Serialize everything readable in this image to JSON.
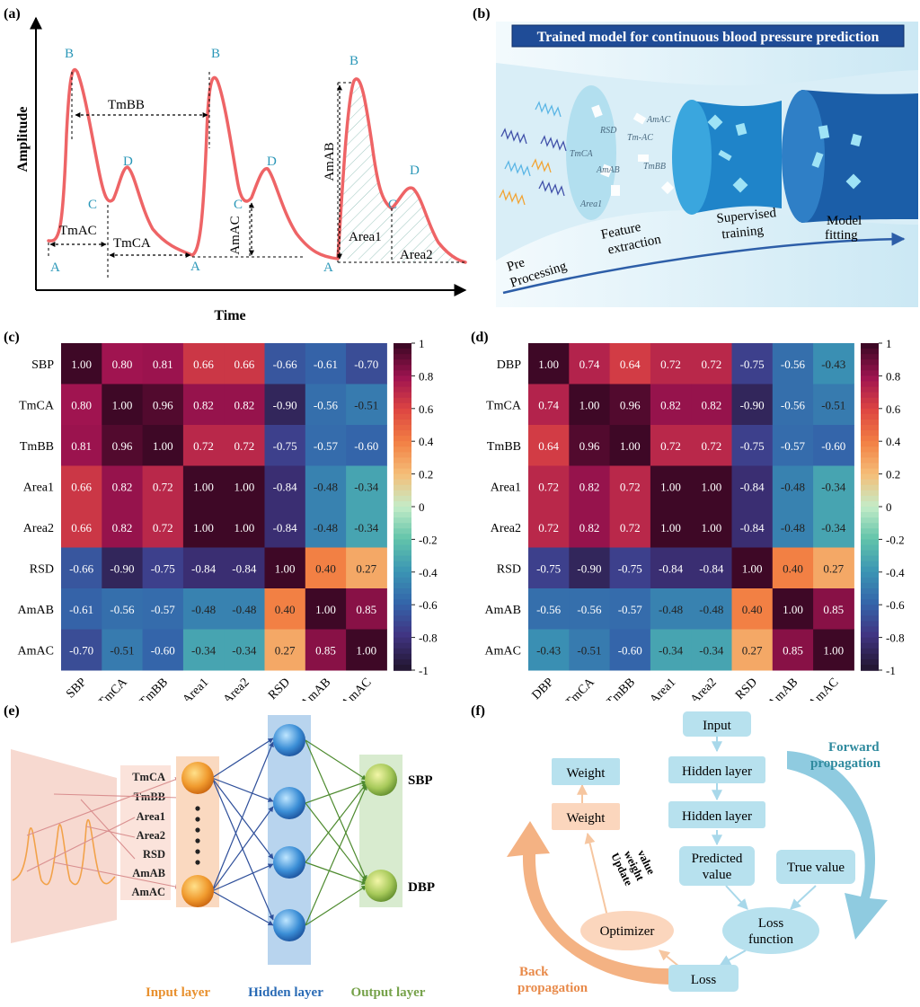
{
  "panels": {
    "a": {
      "label": "(a)",
      "ylabel": "Amplitude",
      "xlabel": "Time",
      "points": {
        "A": "A",
        "B": "B",
        "C": "C",
        "D": "D"
      },
      "measures": {
        "tmbb": "TmBB",
        "tmac": "TmAC",
        "tmca": "TmCA",
        "amac": "AmAC",
        "amab": "AmAB",
        "area1": "Area1",
        "area2": "Area2"
      }
    },
    "b": {
      "label": "(b)",
      "title": "Trained model for continuous blood pressure prediction",
      "features": [
        "RSD",
        "AmAC",
        "Tm-AC",
        "TmCA",
        "TmBB",
        "AmAB",
        "Area1"
      ],
      "steps": [
        "Pre Processing",
        "Feature extraction",
        "Supervised training",
        "Model fitting"
      ]
    },
    "e": {
      "label": "(e)",
      "inputs": [
        "TmCA",
        "TmBB",
        "Area1",
        "Area2",
        "RSD",
        "AmAB",
        "AmAC"
      ],
      "outputs": [
        "SBP",
        "DBP"
      ],
      "layers": {
        "input": "Input layer",
        "hidden": "Hidden layer",
        "output": "Output layer"
      }
    },
    "f": {
      "label": "(f)",
      "nodes": {
        "input": "Input",
        "hidden1": "Hidden layer",
        "hidden2": "Hidden layer",
        "predicted": "Predicted value",
        "true_value": "True value",
        "loss_function": "Loss function",
        "loss": "Loss",
        "optimizer": "Optimizer",
        "weight_top": "Weight",
        "weight_bottom": "Weight"
      },
      "update": "Update weight value",
      "forward": "Forward propagation",
      "back": "Back propagation"
    }
  },
  "chart_data": [
    {
      "type": "heatmap",
      "panel": "(c)",
      "labels": [
        "SBP",
        "TmCA",
        "TmBB",
        "Area1",
        "Area2",
        "RSD",
        "AmAB",
        "AmAC"
      ],
      "values": [
        [
          1.0,
          0.8,
          0.81,
          0.66,
          0.66,
          -0.66,
          -0.61,
          -0.7
        ],
        [
          0.8,
          1.0,
          0.96,
          0.82,
          0.82,
          -0.9,
          -0.56,
          -0.51
        ],
        [
          0.81,
          0.96,
          1.0,
          0.72,
          0.72,
          -0.75,
          -0.57,
          -0.6
        ],
        [
          0.66,
          0.82,
          0.72,
          1.0,
          1.0,
          -0.84,
          -0.48,
          -0.34
        ],
        [
          0.66,
          0.82,
          0.72,
          1.0,
          1.0,
          -0.84,
          -0.48,
          -0.34
        ],
        [
          -0.66,
          -0.9,
          -0.75,
          -0.84,
          -0.84,
          1.0,
          0.4,
          0.27
        ],
        [
          -0.61,
          -0.56,
          -0.57,
          -0.48,
          -0.48,
          0.4,
          1.0,
          0.85
        ],
        [
          -0.7,
          -0.51,
          -0.6,
          -0.34,
          -0.34,
          0.27,
          0.85,
          1.0
        ]
      ],
      "colorbar_ticks": [
        "1",
        "0.8",
        "0.6",
        "0.4",
        "0.2",
        "0",
        "-0.2",
        "-0.4",
        "-0.6",
        "-0.8",
        "-1"
      ],
      "vmin": -1,
      "vmax": 1
    },
    {
      "type": "heatmap",
      "panel": "(d)",
      "labels": [
        "DBP",
        "TmCA",
        "TmBB",
        "Area1",
        "Area2",
        "RSD",
        "AmAB",
        "AmAC"
      ],
      "values": [
        [
          1.0,
          0.74,
          0.64,
          0.72,
          0.72,
          -0.75,
          -0.56,
          -0.43
        ],
        [
          0.74,
          1.0,
          0.96,
          0.82,
          0.82,
          -0.9,
          -0.56,
          -0.51
        ],
        [
          0.64,
          0.96,
          1.0,
          0.72,
          0.72,
          -0.75,
          -0.57,
          -0.6
        ],
        [
          0.72,
          0.82,
          0.72,
          1.0,
          1.0,
          -0.84,
          -0.48,
          -0.34
        ],
        [
          0.72,
          0.82,
          0.72,
          1.0,
          1.0,
          -0.84,
          -0.48,
          -0.34
        ],
        [
          -0.75,
          -0.9,
          -0.75,
          -0.84,
          -0.84,
          1.0,
          0.4,
          0.27
        ],
        [
          -0.56,
          -0.56,
          -0.57,
          -0.48,
          -0.48,
          0.4,
          1.0,
          0.85
        ],
        [
          -0.43,
          -0.51,
          -0.6,
          -0.34,
          -0.34,
          0.27,
          0.85,
          1.0
        ]
      ],
      "colorbar_ticks": [
        "1",
        "0.8",
        "0.6",
        "0.4",
        "0.2",
        "0",
        "-0.2",
        "-0.4",
        "-0.6",
        "-0.8",
        "-1"
      ],
      "vmin": -1,
      "vmax": 1
    }
  ]
}
